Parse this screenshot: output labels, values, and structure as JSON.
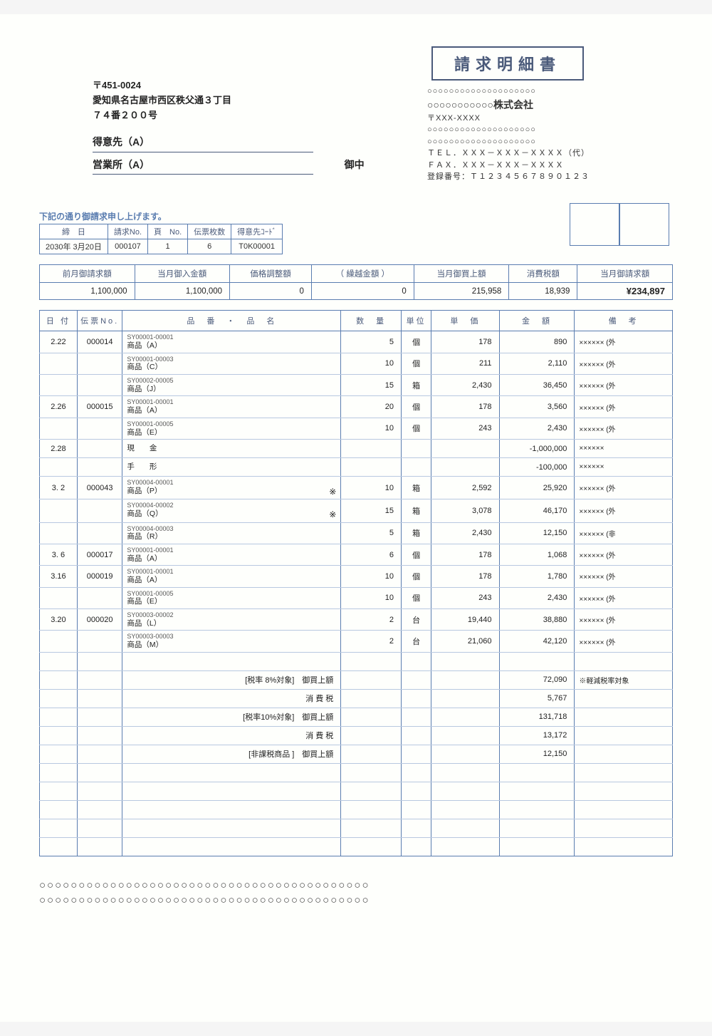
{
  "title": "請求明細書",
  "customer": {
    "postal": "〒451-0024",
    "address1": "愛知県名古屋市西区秩父通３丁目",
    "address2": "７４番２００号",
    "name1": "得意先（A）",
    "name2": "営業所（A）",
    "onchu": "御中"
  },
  "company": {
    "line1": "○○○○○○○○○○○○○○○○○○○○",
    "name": "○○○○○○○○○○○株式会社",
    "postal": "〒XXX-XXXX",
    "addr1": "○○○○○○○○○○○○○○○○○○○○",
    "addr2": "○○○○○○○○○○○○○○○○○○○○",
    "tel": "ＴＥＬ．ＸＸＸ－ＸＸＸ－ＸＸＸＸ（代）",
    "fax": "ＦＡＸ．ＸＸＸ－ＸＸＸ－ＸＸＸＸ",
    "regno": "登録番号：Ｔ１２３４５６７８９０１２３"
  },
  "notice": "下記の通り御請求申し上げます。",
  "meta": {
    "headers": [
      "締　日",
      "請求No.",
      "頁　No.",
      "伝票枚数",
      "得意先ｺｰﾄﾞ"
    ],
    "values": [
      "2030年 3月20日",
      "000107",
      "1",
      "6",
      "T0K00001"
    ]
  },
  "summary": {
    "headers": [
      "前月御請求額",
      "当月御入金額",
      "価格調整額",
      "（ 繰越金額 ）",
      "当月御買上額",
      "消費税額",
      "当月御請求額"
    ],
    "values": [
      "1,100,000",
      "1,100,000",
      "0",
      "0",
      "215,958",
      "18,939",
      "¥234,897"
    ]
  },
  "detail": {
    "headers": [
      "日 付",
      "伝票No.",
      "品　番　・　品　名",
      "数　量",
      "単位",
      "単　価",
      "金　額",
      "備　考"
    ],
    "rows": [
      {
        "date": "2.22",
        "slip": "000014",
        "code": "SY00001-00001",
        "name": "商品（A）",
        "qty": "5",
        "unit": "個",
        "price": "178",
        "amount": "890",
        "note": "×××××× (外"
      },
      {
        "date": "",
        "slip": "",
        "code": "SY00001-00003",
        "name": "商品（C）",
        "qty": "10",
        "unit": "個",
        "price": "211",
        "amount": "2,110",
        "note": "×××××× (外"
      },
      {
        "date": "",
        "slip": "",
        "code": "SY00002-00005",
        "name": "商品（J）",
        "qty": "15",
        "unit": "箱",
        "price": "2,430",
        "amount": "36,450",
        "note": "×××××× (外"
      },
      {
        "date": "2.26",
        "slip": "000015",
        "code": "SY00001-00001",
        "name": "商品（A）",
        "qty": "20",
        "unit": "個",
        "price": "178",
        "amount": "3,560",
        "note": "×××××× (外"
      },
      {
        "date": "",
        "slip": "",
        "code": "SY00001-00005",
        "name": "商品（E）",
        "qty": "10",
        "unit": "個",
        "price": "243",
        "amount": "2,430",
        "note": "×××××× (外"
      },
      {
        "date": "2.28",
        "slip": "",
        "code": "",
        "name": "現　　金",
        "qty": "",
        "unit": "",
        "price": "",
        "amount": "-1,000,000",
        "note": "××××××"
      },
      {
        "date": "",
        "slip": "",
        "code": "",
        "name": "手　　形",
        "qty": "",
        "unit": "",
        "price": "",
        "amount": "-100,000",
        "note": "××××××"
      },
      {
        "date": "3. 2",
        "slip": "000043",
        "code": "SY00004-00001",
        "name": "商品（P）",
        "mark": "※",
        "qty": "10",
        "unit": "箱",
        "price": "2,592",
        "amount": "25,920",
        "note": "×××××× (外"
      },
      {
        "date": "",
        "slip": "",
        "code": "SY00004-00002",
        "name": "商品（Q）",
        "mark": "※",
        "qty": "15",
        "unit": "箱",
        "price": "3,078",
        "amount": "46,170",
        "note": "×××××× (外"
      },
      {
        "date": "",
        "slip": "",
        "code": "SY00004-00003",
        "name": "商品（R）",
        "qty": "5",
        "unit": "箱",
        "price": "2,430",
        "amount": "12,150",
        "note": "×××××× (非"
      },
      {
        "date": "3. 6",
        "slip": "000017",
        "code": "SY00001-00001",
        "name": "商品（A）",
        "qty": "6",
        "unit": "個",
        "price": "178",
        "amount": "1,068",
        "note": "×××××× (外"
      },
      {
        "date": "3.16",
        "slip": "000019",
        "code": "SY00001-00001",
        "name": "商品（A）",
        "qty": "10",
        "unit": "個",
        "price": "178",
        "amount": "1,780",
        "note": "×××××× (外"
      },
      {
        "date": "",
        "slip": "",
        "code": "SY00001-00005",
        "name": "商品（E）",
        "qty": "10",
        "unit": "個",
        "price": "243",
        "amount": "2,430",
        "note": "×××××× (外"
      },
      {
        "date": "3.20",
        "slip": "000020",
        "code": "SY00003-00002",
        "name": "商品（L）",
        "qty": "2",
        "unit": "台",
        "price": "19,440",
        "amount": "38,880",
        "note": "×××××× (外"
      },
      {
        "date": "",
        "slip": "",
        "code": "SY00003-00003",
        "name": "商品（M）",
        "qty": "2",
        "unit": "台",
        "price": "21,060",
        "amount": "42,120",
        "note": "×××××× (外"
      }
    ],
    "subtotals": [
      {
        "label": "[税率 8%対象]　御買上額",
        "amount": "72,090",
        "note": "※軽減税率対象"
      },
      {
        "label": "消 費 税",
        "amount": "5,767",
        "note": ""
      },
      {
        "label": "[税率10%対象]　御買上額",
        "amount": "131,718",
        "note": ""
      },
      {
        "label": "消 費 税",
        "amount": "13,172",
        "note": ""
      },
      {
        "label": "[非課税商品 ]　御買上額",
        "amount": "12,150",
        "note": ""
      }
    ]
  },
  "footer": {
    "line1": "○○○○○○○○○○○○○○○○○○○○○○○○○○○○○○○○○○○○○○○○○○",
    "line2": "○○○○○○○○○○○○○○○○○○○○○○○○○○○○○○○○○○○○○○○○○○"
  }
}
